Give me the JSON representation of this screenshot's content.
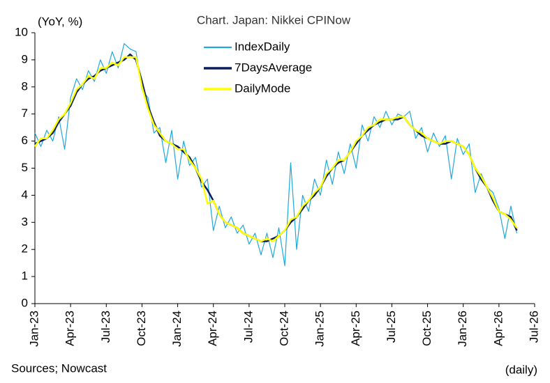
{
  "chart_data": {
    "type": "line",
    "title": "Chart. Japan: Nikkei CPINow",
    "y_label": "(YoY, %)",
    "source": "Sources; Nowcast",
    "frequency": "(daily)",
    "x": [
      0,
      0.5,
      1,
      1.5,
      2,
      2.5,
      3,
      3.5,
      4,
      4.5,
      5,
      5.5,
      6,
      6.5,
      7,
      7.5,
      8,
      8.5,
      9,
      9.5,
      10,
      10.5,
      11,
      11.5,
      12,
      12.5,
      13,
      13.5,
      14,
      14.5,
      15,
      15.5,
      16,
      16.5,
      17,
      17.5,
      18,
      18.5,
      19,
      19.5,
      20,
      20.5,
      21,
      21.5,
      22,
      22.5,
      23,
      23.5,
      24,
      24.5,
      25,
      25.5,
      26,
      26.5,
      27,
      27.5,
      28,
      28.5,
      29,
      29.5,
      30,
      30.5,
      31,
      31.5,
      32,
      32.5,
      33,
      33.5,
      34,
      34.5,
      35,
      35.5,
      36,
      36.5,
      37,
      37.5,
      38,
      38.5,
      39,
      39.5,
      40,
      40.5
    ],
    "xlim": [
      0,
      42
    ],
    "xticks": [
      {
        "value": 0,
        "label": "Jan-23"
      },
      {
        "value": 3,
        "label": "Apr-23"
      },
      {
        "value": 6,
        "label": "Jul-23"
      },
      {
        "value": 9,
        "label": "Oct-23"
      },
      {
        "value": 12,
        "label": "Jan-24"
      },
      {
        "value": 15,
        "label": "Apr-24"
      },
      {
        "value": 18,
        "label": "Jul-24"
      },
      {
        "value": 21,
        "label": "Oct-24"
      },
      {
        "value": 24,
        "label": "Jan-25"
      },
      {
        "value": 27,
        "label": "Apr-25"
      },
      {
        "value": 30,
        "label": "Jul-25"
      },
      {
        "value": 33,
        "label": "Oct-25"
      },
      {
        "value": 36,
        "label": "Jan-26"
      },
      {
        "value": 39,
        "label": "Apr-26"
      },
      {
        "value": 42,
        "label": "Jul-26"
      }
    ],
    "ylim": [
      0,
      10
    ],
    "yticks": [
      0,
      1,
      2,
      3,
      4,
      5,
      6,
      7,
      8,
      9,
      10
    ],
    "grid": false,
    "legend": "top",
    "series": [
      {
        "name": "IndexDaily",
        "color": "#1fa8dc",
        "width": 1.2,
        "values": [
          6.3,
          5.8,
          6.4,
          6.0,
          6.9,
          5.7,
          7.6,
          8.3,
          7.9,
          8.6,
          8.2,
          9.0,
          8.5,
          9.3,
          8.7,
          9.6,
          9.4,
          9.3,
          7.9,
          7.6,
          6.3,
          6.5,
          5.2,
          6.4,
          4.6,
          6.0,
          5.1,
          5.4,
          4.3,
          4.6,
          2.7,
          3.6,
          2.8,
          3.2,
          2.6,
          2.9,
          2.2,
          2.6,
          1.8,
          2.6,
          1.7,
          2.8,
          1.4,
          5.2,
          2.0,
          4.0,
          3.4,
          4.6,
          4.0,
          5.3,
          4.4,
          5.6,
          4.8,
          5.9,
          5.0,
          6.6,
          6.0,
          6.9,
          6.5,
          7.1,
          6.6,
          7.0,
          6.9,
          7.1,
          6.1,
          6.5,
          5.6,
          6.3,
          5.8,
          6.2,
          4.6,
          6.1,
          5.5,
          5.9,
          4.1,
          4.8,
          4.3,
          4.1,
          3.5,
          2.4,
          3.6,
          2.6
        ]
      },
      {
        "name": "7DaysAverage",
        "color": "#0a1f5c",
        "width": 2.5,
        "values": [
          5.9,
          6.0,
          6.1,
          6.3,
          6.7,
          7.0,
          7.3,
          7.8,
          8.1,
          8.3,
          8.4,
          8.6,
          8.7,
          8.8,
          8.9,
          9.0,
          9.2,
          9.0,
          8.2,
          7.3,
          6.7,
          6.2,
          6.0,
          5.9,
          5.8,
          5.6,
          5.4,
          5.0,
          4.5,
          4.2,
          3.8,
          3.3,
          3.0,
          2.9,
          2.8,
          2.6,
          2.5,
          2.4,
          2.3,
          2.3,
          2.4,
          2.5,
          2.7,
          3.0,
          3.2,
          3.5,
          3.8,
          4.0,
          4.3,
          4.7,
          5.0,
          5.2,
          5.3,
          5.6,
          5.9,
          6.2,
          6.4,
          6.6,
          6.7,
          6.8,
          6.8,
          6.8,
          6.9,
          6.6,
          6.4,
          6.2,
          6.1,
          6.0,
          5.9,
          5.9,
          6.0,
          5.9,
          5.8,
          5.5,
          5.0,
          4.6,
          4.3,
          3.8,
          3.4,
          3.3,
          3.2,
          2.7
        ]
      },
      {
        "name": "DailyMode",
        "color": "#ffff00",
        "width": 2.5,
        "values": [
          5.8,
          6.1,
          6.1,
          6.4,
          6.8,
          7.0,
          7.4,
          7.9,
          8.1,
          8.4,
          8.3,
          8.7,
          8.7,
          8.9,
          8.8,
          9.1,
          9.1,
          9.1,
          8.0,
          7.2,
          6.6,
          6.3,
          6.0,
          5.9,
          5.7,
          5.7,
          5.3,
          5.0,
          4.6,
          3.7,
          3.8,
          3.3,
          3.0,
          2.9,
          2.8,
          2.6,
          2.5,
          2.4,
          2.3,
          2.4,
          2.3,
          2.5,
          2.7,
          3.1,
          3.2,
          3.6,
          3.8,
          4.1,
          4.3,
          4.8,
          5.0,
          5.3,
          5.3,
          5.6,
          6.0,
          6.2,
          6.5,
          6.6,
          6.8,
          6.8,
          6.8,
          6.9,
          6.9,
          6.6,
          6.4,
          6.3,
          6.1,
          6.0,
          5.9,
          6.0,
          6.0,
          5.9,
          5.8,
          5.5,
          5.0,
          4.7,
          4.3,
          3.9,
          3.4,
          3.3,
          3.1,
          2.8
        ]
      }
    ]
  }
}
